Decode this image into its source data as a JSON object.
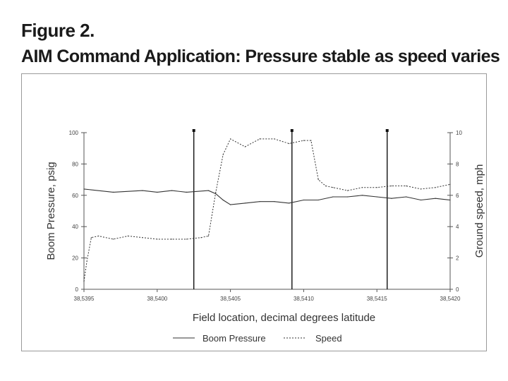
{
  "figure": {
    "label": "Figure 2.",
    "title": "AIM Command Application: Pressure stable as speed varies"
  },
  "chart_data": {
    "type": "line",
    "xlabel": "Field location, decimal degrees  latitude",
    "ylabel_left": "Boom Pressure, psig",
    "ylabel_right": "Ground speed, mph",
    "xlim": [
      38.5395,
      38.542
    ],
    "ylim_left": [
      0,
      100
    ],
    "ylim_right": [
      0,
      10
    ],
    "x_tick_labels": [
      "38,5395",
      "38,5400",
      "38,5405",
      "38,5410",
      "38,5415",
      "38,5420"
    ],
    "x_ticks": [
      38.5395,
      38.54,
      38.5405,
      38.541,
      38.5415,
      38.542
    ],
    "y_left_ticks": [
      "0",
      "20",
      "40",
      "60",
      "80",
      "100"
    ],
    "y_right_ticks": [
      "0",
      "2",
      "4",
      "6",
      "8",
      "10"
    ],
    "vertical_markers": [
      38.54025,
      38.54092,
      38.54157
    ],
    "series": [
      {
        "name": "Boom Pressure",
        "axis": "left",
        "style": "solid",
        "x": [
          38.5395,
          38.5397,
          38.5399,
          38.54,
          38.5401,
          38.5402,
          38.54035,
          38.5404,
          38.54045,
          38.5405,
          38.5406,
          38.5407,
          38.5408,
          38.5409,
          38.541,
          38.5411,
          38.5412,
          38.5413,
          38.5414,
          38.5415,
          38.5416,
          38.5417,
          38.5418,
          38.5419,
          38.542
        ],
        "values": [
          64,
          62,
          63,
          62,
          63,
          62,
          63,
          61,
          57,
          54,
          55,
          56,
          56,
          55,
          57,
          57,
          59,
          59,
          60,
          59,
          58,
          59,
          57,
          58,
          57
        ]
      },
      {
        "name": "Speed",
        "axis": "right",
        "style": "dashed",
        "x": [
          38.5395,
          38.53952,
          38.53955,
          38.5396,
          38.5397,
          38.5398,
          38.5399,
          38.54,
          38.5401,
          38.5402,
          38.5403,
          38.54035,
          38.5404,
          38.54045,
          38.5405,
          38.5406,
          38.5407,
          38.5408,
          38.5409,
          38.541,
          38.54105,
          38.5411,
          38.54115,
          38.5412,
          38.5413,
          38.5414,
          38.5415,
          38.5416,
          38.5417,
          38.5418,
          38.5419,
          38.542
        ],
        "values": [
          0.5,
          1.8,
          3.3,
          3.4,
          3.2,
          3.4,
          3.3,
          3.2,
          3.2,
          3.2,
          3.3,
          3.4,
          6.2,
          8.6,
          9.6,
          9.1,
          9.6,
          9.6,
          9.3,
          9.5,
          9.5,
          7.0,
          6.6,
          6.5,
          6.3,
          6.5,
          6.5,
          6.6,
          6.6,
          6.4,
          6.5,
          6.7
        ]
      }
    ],
    "legend": [
      "Boom Pressure",
      "Speed"
    ],
    "legend_position": "bottom-center",
    "grid": false
  },
  "colors": {
    "line": "#333333",
    "marker": "#111111",
    "frame": "#9a9a9a"
  }
}
